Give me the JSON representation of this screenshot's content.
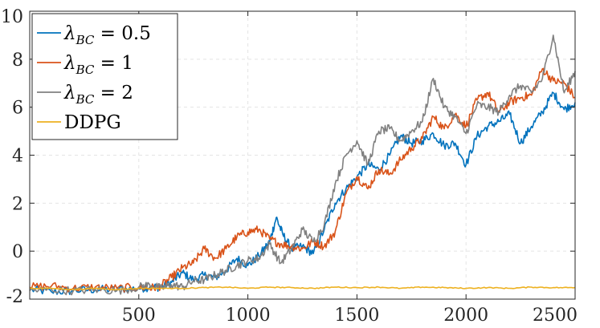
{
  "chart_data": {
    "type": "line",
    "title": "",
    "xlabel": "",
    "ylabel": "",
    "xlim": [
      0,
      2500
    ],
    "ylim": [
      -2,
      10
    ],
    "x_ticks": [
      500,
      1000,
      1500,
      2000,
      2500
    ],
    "y_ticks": [
      -2,
      0,
      2,
      4,
      6,
      8,
      10
    ],
    "grid": true,
    "legend_position": "top-left",
    "series": [
      {
        "legend": {
          "symbol": "λ",
          "subscript": "BC",
          "relation": " = ",
          "value": "0.5"
        },
        "color": "#0072BD",
        "x": [
          0,
          100,
          200,
          300,
          400,
          500,
          550,
          600,
          650,
          700,
          750,
          800,
          850,
          900,
          950,
          1000,
          1050,
          1100,
          1130,
          1160,
          1200,
          1250,
          1300,
          1350,
          1400,
          1450,
          1500,
          1550,
          1600,
          1650,
          1700,
          1750,
          1800,
          1850,
          1900,
          1950,
          2000,
          2050,
          2100,
          2150,
          2200,
          2250,
          2300,
          2350,
          2400,
          2450,
          2500
        ],
        "values": [
          -1.6,
          -1.7,
          -1.65,
          -1.6,
          -1.6,
          -1.55,
          -1.5,
          -1.5,
          -1.3,
          -0.9,
          -1.2,
          -1.0,
          -1.1,
          -0.8,
          -0.3,
          -0.6,
          -0.2,
          0.4,
          1.4,
          0.7,
          0.1,
          0.2,
          -0.1,
          0.9,
          2.0,
          2.6,
          3.1,
          3.6,
          3.4,
          4.0,
          4.8,
          4.5,
          4.6,
          4.9,
          4.4,
          4.5,
          3.6,
          4.8,
          5.2,
          5.4,
          5.7,
          4.5,
          5.2,
          5.8,
          6.6,
          5.9,
          6.2
        ]
      },
      {
        "legend": {
          "symbol": "λ",
          "subscript": "BC",
          "relation": " = ",
          "value": "1"
        },
        "color": "#D95319",
        "x": [
          0,
          100,
          200,
          300,
          400,
          500,
          550,
          600,
          650,
          700,
          750,
          800,
          850,
          900,
          950,
          1000,
          1050,
          1100,
          1150,
          1200,
          1250,
          1300,
          1350,
          1400,
          1450,
          1500,
          1550,
          1600,
          1650,
          1700,
          1750,
          1800,
          1850,
          1900,
          1950,
          2000,
          2050,
          2100,
          2150,
          2200,
          2250,
          2300,
          2350,
          2400,
          2450,
          2500
        ],
        "values": [
          -1.5,
          -1.45,
          -1.55,
          -1.5,
          -1.55,
          -1.5,
          -1.55,
          -1.45,
          -1.1,
          -0.7,
          -0.5,
          0.1,
          -0.3,
          0.1,
          0.6,
          0.8,
          0.9,
          0.5,
          0.3,
          0.2,
          0.1,
          0.4,
          0.2,
          0.8,
          2.4,
          3.1,
          2.6,
          3.4,
          3.2,
          3.8,
          4.3,
          4.7,
          5.6,
          5.1,
          5.7,
          5.2,
          6.3,
          6.6,
          5.8,
          6.2,
          6.4,
          6.5,
          7.6,
          7.1,
          7.0,
          6.4
        ]
      },
      {
        "legend": {
          "symbol": "λ",
          "subscript": "BC",
          "relation": " = ",
          "value": "2"
        },
        "color": "#808080",
        "x": [
          0,
          100,
          200,
          300,
          400,
          500,
          550,
          600,
          650,
          700,
          750,
          800,
          850,
          900,
          950,
          1000,
          1050,
          1100,
          1150,
          1200,
          1250,
          1300,
          1350,
          1400,
          1450,
          1500,
          1550,
          1600,
          1650,
          1700,
          1750,
          1800,
          1850,
          1900,
          1950,
          2000,
          2050,
          2100,
          2150,
          2200,
          2250,
          2300,
          2350,
          2400,
          2450,
          2500
        ],
        "values": [
          -1.65,
          -1.6,
          -1.65,
          -1.6,
          -1.65,
          -1.5,
          -1.4,
          -1.55,
          -1.4,
          -1.5,
          -1.25,
          -1.2,
          -1.0,
          -0.8,
          -0.6,
          -0.4,
          -0.3,
          0.3,
          -0.5,
          0.1,
          0.9,
          0.4,
          1.1,
          2.8,
          4.0,
          4.6,
          3.6,
          5.0,
          5.1,
          4.6,
          5.0,
          5.4,
          7.2,
          6.0,
          5.6,
          4.9,
          6.1,
          6.0,
          5.8,
          6.5,
          6.9,
          6.6,
          7.2,
          9.0,
          6.6,
          7.5
        ]
      },
      {
        "legend": {
          "symbol": "",
          "subscript": "",
          "relation": "",
          "value": "DDPG"
        },
        "color": "#EDB120",
        "x": [
          0,
          100,
          200,
          300,
          400,
          500,
          600,
          700,
          800,
          900,
          1000,
          1100,
          1200,
          1300,
          1400,
          1500,
          1600,
          1700,
          1800,
          1900,
          2000,
          2100,
          2200,
          2300,
          2400,
          2500
        ],
        "values": [
          -1.55,
          -1.55,
          -1.6,
          -1.55,
          -1.6,
          -1.55,
          -1.55,
          -1.55,
          -1.52,
          -1.5,
          -1.55,
          -1.5,
          -1.52,
          -1.55,
          -1.5,
          -1.52,
          -1.5,
          -1.55,
          -1.5,
          -1.52,
          -1.55,
          -1.52,
          -1.55,
          -1.5,
          -1.52,
          -1.52
        ]
      }
    ]
  }
}
